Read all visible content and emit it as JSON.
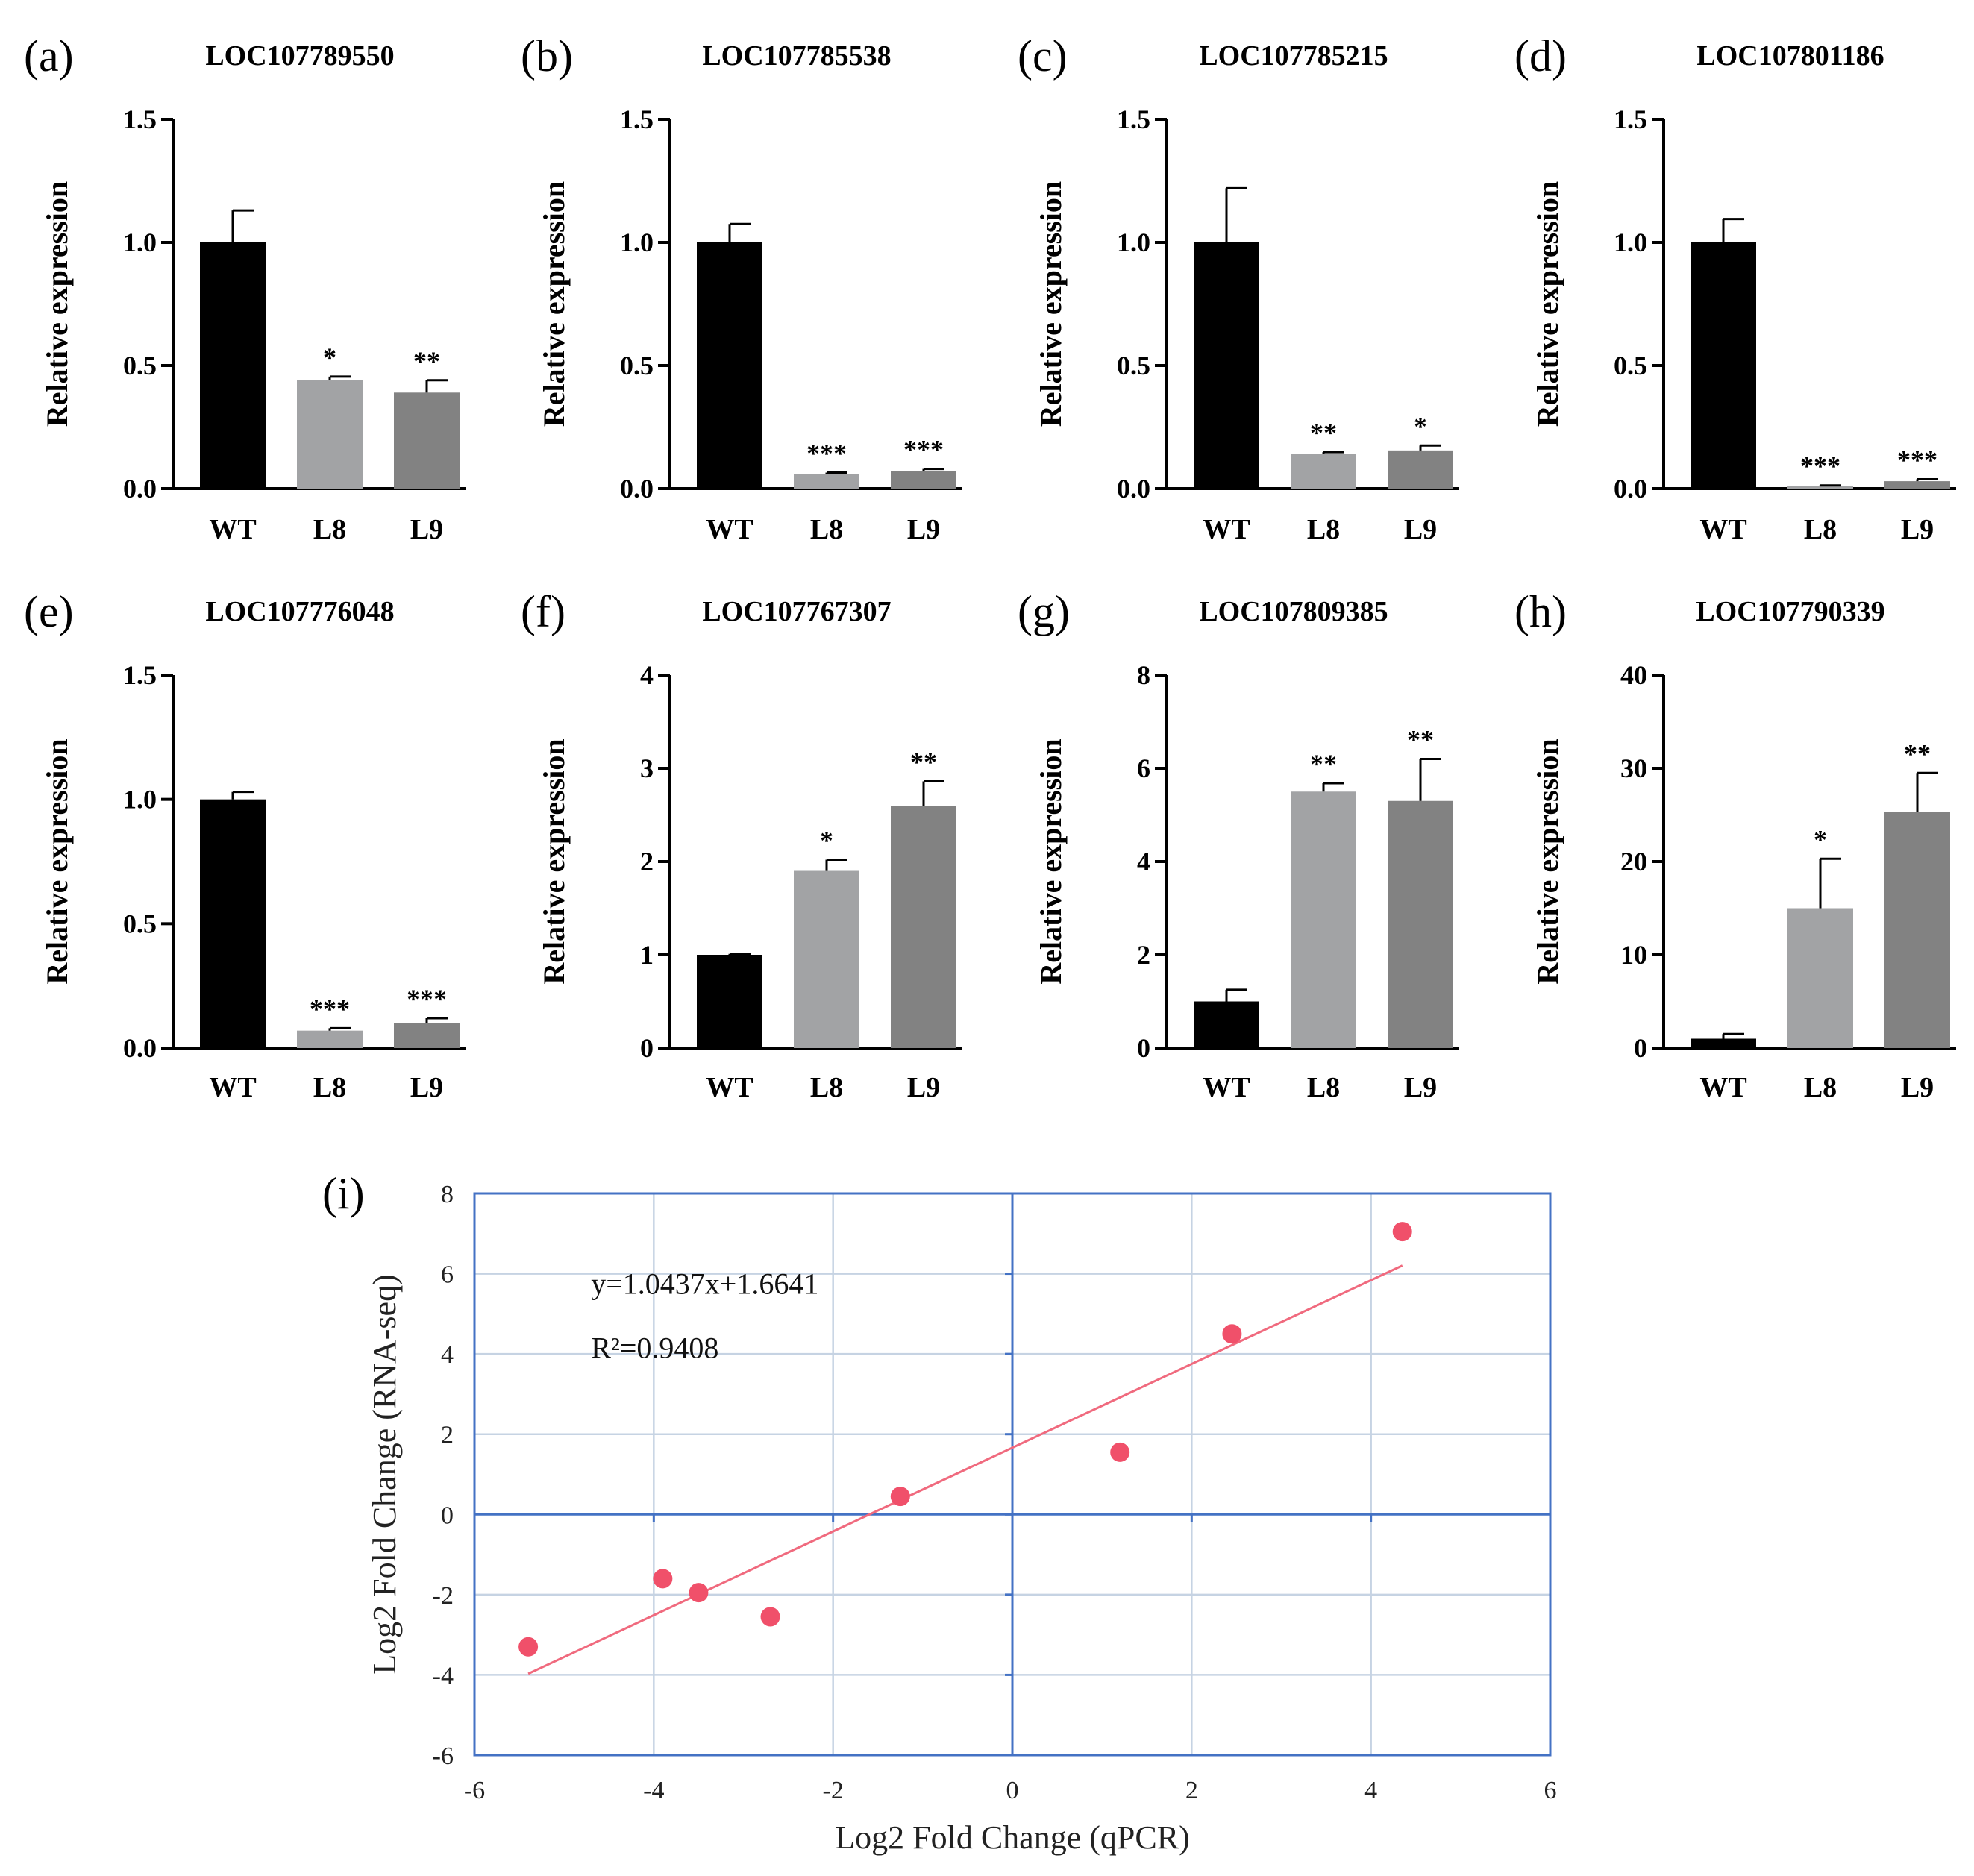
{
  "colors": {
    "WT": "#000000",
    "L8": "#a2a3a5",
    "L9": "#828282",
    "scatter_point": "#f0506a",
    "trendline": "#f06a7e",
    "grid": "#c6d3e3",
    "axis_blue": "#4472c4"
  },
  "chart_data": [
    {
      "type": "bar",
      "panel": "(a)",
      "title": "LOC107789550",
      "ylabel": "Relative expression",
      "xlabel": "",
      "categories": [
        "WT",
        "L8",
        "L9"
      ],
      "values": [
        1.0,
        0.44,
        0.39
      ],
      "errors": [
        0.13,
        0.015,
        0.05
      ],
      "significance": [
        "",
        "*",
        "**"
      ],
      "ylim": [
        0,
        1.5
      ],
      "yticks": [
        "0.0",
        "0.5",
        "1.0",
        "1.5"
      ]
    },
    {
      "type": "bar",
      "panel": "(b)",
      "title": "LOC107785538",
      "ylabel": "Relative expression",
      "xlabel": "",
      "categories": [
        "WT",
        "L8",
        "L9"
      ],
      "values": [
        1.0,
        0.06,
        0.07
      ],
      "errors": [
        0.075,
        0.005,
        0.01
      ],
      "significance": [
        "",
        "***",
        "***"
      ],
      "ylim": [
        0,
        1.5
      ],
      "yticks": [
        "0.0",
        "0.5",
        "1.0",
        "1.5"
      ]
    },
    {
      "type": "bar",
      "panel": "(c)",
      "title": "LOC107785215",
      "ylabel": "Relative expression",
      "xlabel": "",
      "categories": [
        "WT",
        "L8",
        "L9"
      ],
      "values": [
        1.0,
        0.14,
        0.155
      ],
      "errors": [
        0.22,
        0.008,
        0.02
      ],
      "significance": [
        "",
        "**",
        "*"
      ],
      "ylim": [
        0,
        1.5
      ],
      "yticks": [
        "0.0",
        "0.5",
        "1.0",
        "1.5"
      ]
    },
    {
      "type": "bar",
      "panel": "(d)",
      "title": "LOC107801186",
      "ylabel": "Relative expression",
      "xlabel": "",
      "categories": [
        "WT",
        "L8",
        "L9"
      ],
      "values": [
        1.0,
        0.01,
        0.03
      ],
      "errors": [
        0.095,
        0.003,
        0.008
      ],
      "significance": [
        "",
        "***",
        "***"
      ],
      "ylim": [
        0,
        1.5
      ],
      "yticks": [
        "0.0",
        "0.5",
        "1.0",
        "1.5"
      ]
    },
    {
      "type": "bar",
      "panel": "(e)",
      "title": "LOC107776048",
      "ylabel": "Relative expression",
      "xlabel": "",
      "categories": [
        "WT",
        "L8",
        "L9"
      ],
      "values": [
        1.0,
        0.07,
        0.1
      ],
      "errors": [
        0.03,
        0.01,
        0.02
      ],
      "significance": [
        "",
        "***",
        "***"
      ],
      "ylim": [
        0,
        1.5
      ],
      "yticks": [
        "0.0",
        "0.5",
        "1.0",
        "1.5"
      ]
    },
    {
      "type": "bar",
      "panel": "(f)",
      "title": "LOC107767307",
      "ylabel": "Relative expression",
      "xlabel": "",
      "categories": [
        "WT",
        "L8",
        "L9"
      ],
      "values": [
        1.0,
        1.9,
        2.6
      ],
      "errors": [
        0.01,
        0.12,
        0.26
      ],
      "significance": [
        "",
        "*",
        "**"
      ],
      "ylim": [
        0,
        4
      ],
      "yticks": [
        "0",
        "1",
        "2",
        "3",
        "4"
      ]
    },
    {
      "type": "bar",
      "panel": "(g)",
      "title": "LOC107809385",
      "ylabel": "Relative expression",
      "xlabel": "",
      "categories": [
        "WT",
        "L8",
        "L9"
      ],
      "values": [
        1.0,
        5.5,
        5.3
      ],
      "errors": [
        0.25,
        0.18,
        0.9
      ],
      "significance": [
        "",
        "**",
        "**"
      ],
      "ylim": [
        0,
        8
      ],
      "yticks": [
        "0",
        "2",
        "4",
        "6",
        "8"
      ]
    },
    {
      "type": "bar",
      "panel": "(h)",
      "title": "LOC107790339",
      "ylabel": "Relative expression",
      "xlabel": "",
      "categories": [
        "WT",
        "L8",
        "L9"
      ],
      "values": [
        1.0,
        15.0,
        25.3
      ],
      "errors": [
        0.5,
        5.3,
        4.2
      ],
      "significance": [
        "",
        "*",
        "**"
      ],
      "ylim": [
        0,
        40
      ],
      "yticks": [
        "0",
        "10",
        "20",
        "30",
        "40"
      ]
    },
    {
      "type": "scatter",
      "panel": "(i)",
      "title": "",
      "xlabel": "Log2 Fold Change (qPCR)",
      "ylabel": "Log2 Fold Change (RNA-seq)",
      "points": [
        {
          "x": -5.4,
          "y": -3.3
        },
        {
          "x": -3.9,
          "y": -1.6
        },
        {
          "x": -3.5,
          "y": -1.95
        },
        {
          "x": -2.7,
          "y": -2.55
        },
        {
          "x": -1.25,
          "y": 0.45
        },
        {
          "x": 1.2,
          "y": 1.55
        },
        {
          "x": 2.45,
          "y": 4.5
        },
        {
          "x": 4.35,
          "y": 7.05
        }
      ],
      "trendline": {
        "slope": 1.0437,
        "intercept": 1.6641,
        "x_range": [
          -5.4,
          4.35
        ]
      },
      "equation": "y=1.0437x+1.6641",
      "r_squared": "R²=0.9408",
      "xlim": [
        -6,
        6
      ],
      "ylim": [
        -6,
        8
      ],
      "xticks": [
        "-6",
        "-4",
        "-2",
        "0",
        "2",
        "4",
        "6"
      ],
      "yticks": [
        "-6",
        "-4",
        "-2",
        "0",
        "2",
        "4",
        "6",
        "8"
      ]
    }
  ]
}
